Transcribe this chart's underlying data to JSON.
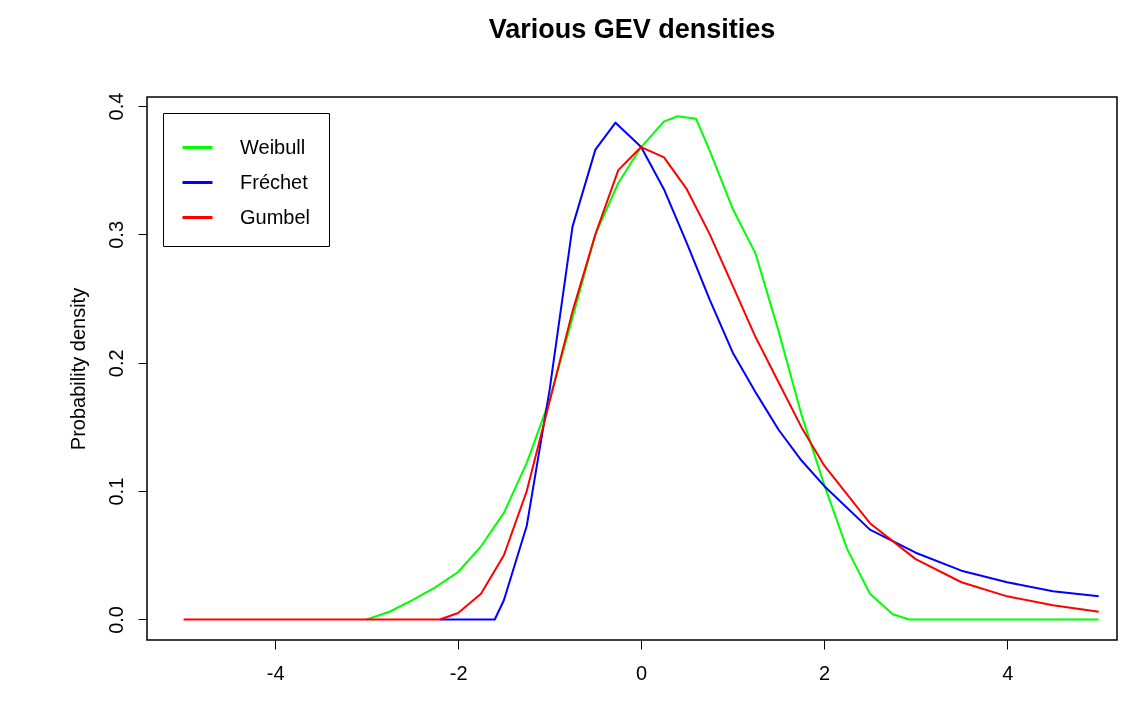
{
  "chart_data": {
    "type": "line",
    "title": "Various GEV densities",
    "ylabel": "Probability density",
    "xlim": [
      -5.4,
      5.2
    ],
    "ylim": [
      -0.016,
      0.407
    ],
    "xticks": [
      -4,
      -2,
      0,
      2,
      4
    ],
    "yticks": [
      {
        "value": 0,
        "label": "0.0"
      },
      0.1,
      0.2,
      0.3,
      0.4
    ],
    "grid": false,
    "legend": "top left",
    "marker": "none",
    "line_style": "solid",
    "series": [
      {
        "name": "Weibull",
        "color": "#00ff00",
        "x": [
          -3,
          -2.75,
          -2.5,
          -2.25,
          -2,
          -1.75,
          -1.5,
          -1.25,
          -1,
          -0.75,
          -0.5,
          -0.25,
          0,
          0.25,
          0.4,
          0.6,
          0.75,
          1,
          1.25,
          1.5,
          1.75,
          2,
          2.25,
          2.5,
          2.75,
          2.93,
          5
        ],
        "values": [
          0,
          0.006,
          0.015,
          0.025,
          0.037,
          0.057,
          0.083,
          0.122,
          0.171,
          0.235,
          0.3,
          0.34,
          0.368,
          0.388,
          0.392,
          0.39,
          0.365,
          0.32,
          0.285,
          0.225,
          0.16,
          0.105,
          0.055,
          0.02,
          0.004,
          0,
          0
        ]
      },
      {
        "name": "Fréchet",
        "color": "#0000ff",
        "x": [
          -2.2,
          -1.6,
          -1.5,
          -1.25,
          -1,
          -0.75,
          -0.5,
          -0.28,
          0,
          0.25,
          0.5,
          0.75,
          1,
          1.25,
          1.5,
          1.75,
          2,
          2.5,
          3,
          3.5,
          4,
          4.5,
          5
        ],
        "values": [
          0,
          0,
          0.015,
          0.073,
          0.179,
          0.306,
          0.366,
          0.387,
          0.368,
          0.335,
          0.293,
          0.249,
          0.208,
          0.177,
          0.148,
          0.124,
          0.104,
          0.07,
          0.052,
          0.038,
          0.029,
          0.022,
          0.018
        ]
      },
      {
        "name": "Gumbel",
        "color": "#ff0000",
        "x": [
          -5,
          -2.5,
          -2.2,
          -2,
          -1.75,
          -1.5,
          -1.25,
          -1,
          -0.75,
          -0.5,
          -0.25,
          0,
          0.25,
          0.5,
          0.75,
          1,
          1.25,
          1.5,
          1.75,
          2,
          2.5,
          3,
          3.5,
          4,
          4.5,
          5
        ],
        "values": [
          0,
          0,
          0,
          0.005,
          0.02,
          0.05,
          0.1,
          0.17,
          0.24,
          0.3,
          0.35,
          0.368,
          0.36,
          0.335,
          0.3,
          0.26,
          0.22,
          0.185,
          0.15,
          0.12,
          0.075,
          0.047,
          0.029,
          0.018,
          0.011,
          0.006
        ]
      }
    ]
  }
}
